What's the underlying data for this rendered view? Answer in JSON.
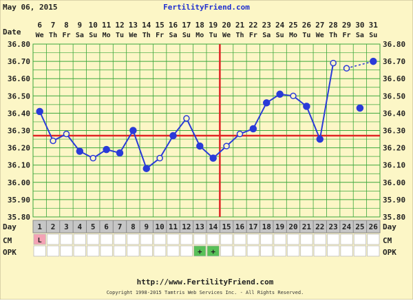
{
  "header": {
    "date": "May 06, 2015",
    "site": "FertilityFriend.com"
  },
  "footer": {
    "url": "http://www.FertilityFriend.com",
    "copyright": "Copyright 1998-2015 Tamtris Web Services Inc. - All Rights Reserved."
  },
  "row_labels": {
    "date": "Date",
    "day": "Day",
    "cm": "CM",
    "opk": "OPK"
  },
  "colors": {
    "background": "#fcf6c6",
    "grid": "#3aa63a",
    "line": "#2a3ad8",
    "coverline": "#e02424",
    "ovulation": "#e02424",
    "cm_l": "#f4a2b4",
    "opk_positive": "#58c058",
    "day_row": "#c6c6c6"
  },
  "chart_data": {
    "type": "line",
    "title": "",
    "xlabel": "",
    "ylabel": "",
    "ylim": [
      35.8,
      36.8
    ],
    "y_ticks": [
      "35.80",
      "35.90",
      "36.00",
      "36.10",
      "36.20",
      "36.30",
      "36.40",
      "36.50",
      "36.60",
      "36.70",
      "36.80"
    ],
    "grid": true,
    "dates": [
      "6",
      "7",
      "8",
      "9",
      "10",
      "11",
      "12",
      "13",
      "14",
      "15",
      "16",
      "17",
      "18",
      "19",
      "20",
      "21",
      "22",
      "23",
      "24",
      "25",
      "26",
      "27",
      "28",
      "29",
      "30",
      "31"
    ],
    "weekdays": [
      "We",
      "Th",
      "Fr",
      "Sa",
      "Su",
      "Mo",
      "Tu",
      "We",
      "Th",
      "Fr",
      "Sa",
      "Su",
      "Mo",
      "Tu",
      "We",
      "Th",
      "Fr",
      "Sa",
      "Su",
      "Mo",
      "Tu",
      "We",
      "Th",
      "Fr",
      "Sa",
      "Su"
    ],
    "cycle_days": [
      "1",
      "2",
      "3",
      "4",
      "5",
      "6",
      "7",
      "8",
      "9",
      "10",
      "11",
      "12",
      "13",
      "14",
      "15",
      "16",
      "17",
      "18",
      "19",
      "20",
      "21",
      "22",
      "23",
      "24",
      "25",
      "26"
    ],
    "temperatures": [
      36.41,
      36.24,
      36.28,
      36.18,
      36.14,
      36.19,
      36.17,
      36.3,
      36.08,
      36.14,
      36.27,
      36.37,
      36.21,
      36.14,
      36.21,
      36.28,
      36.31,
      36.46,
      36.51,
      36.5,
      36.44,
      36.25,
      36.69,
      36.66,
      36.43,
      36.7
    ],
    "markers": [
      "filled",
      "open",
      "open",
      "filled",
      "open",
      "filled",
      "filled",
      "filled",
      "filled",
      "open",
      "filled",
      "open",
      "filled",
      "filled",
      "open",
      "open",
      "filled",
      "filled",
      "filled",
      "open",
      "filled",
      "filled",
      "open",
      "open",
      "filled",
      "filled"
    ],
    "connected_from": 1,
    "connected_to": 23,
    "dashed_segment": [
      24,
      26
    ],
    "coverline": 36.27,
    "ovulation_day": 15,
    "cm": {
      "1": "L"
    },
    "opk": {
      "13": "+",
      "14": "+"
    }
  }
}
